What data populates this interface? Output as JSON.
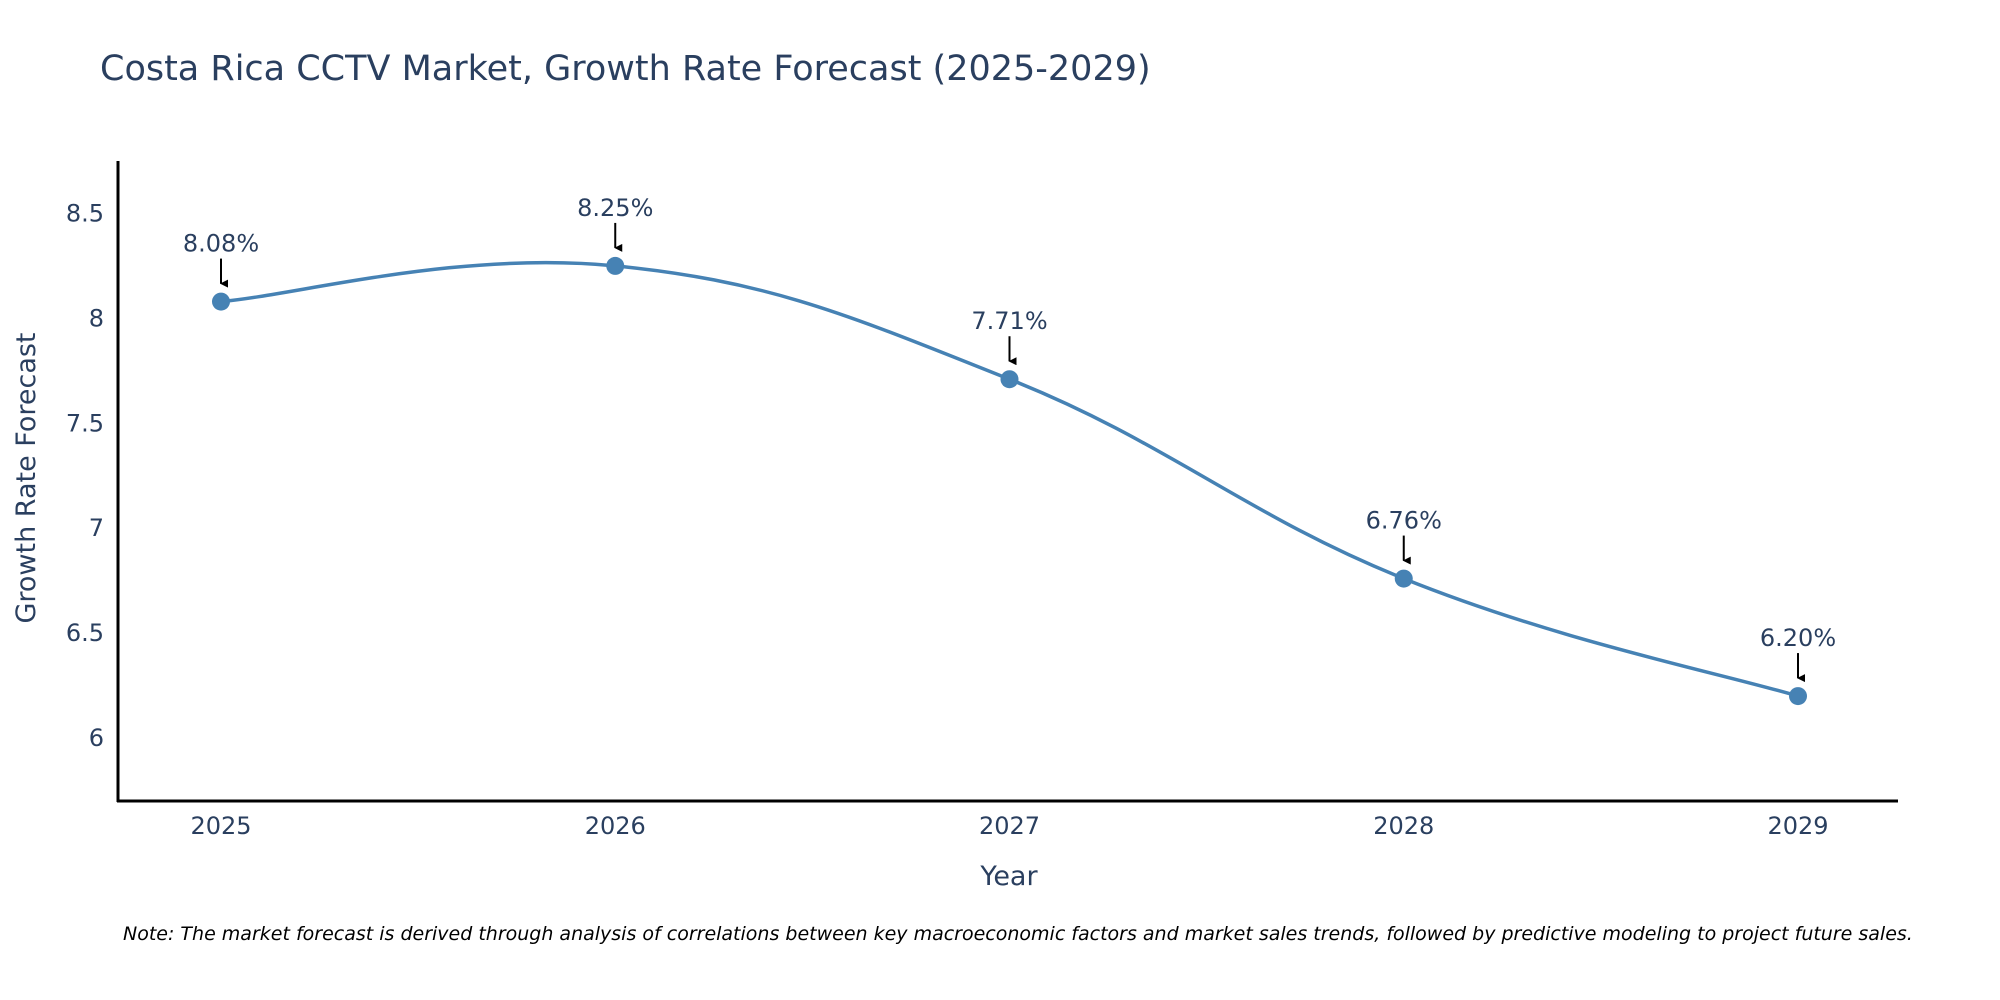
{
  "chart_data": {
    "type": "line",
    "title": "Costa Rica CCTV Market, Growth Rate Forecast (2025-2029)",
    "xlabel": "Year",
    "ylabel": "Growth Rate Forecast",
    "categories": [
      "2025",
      "2026",
      "2027",
      "2028",
      "2029"
    ],
    "values": [
      8.08,
      8.25,
      7.71,
      6.76,
      6.2
    ],
    "data_labels": [
      "8.08%",
      "8.25%",
      "7.71%",
      "6.76%",
      "6.20%"
    ],
    "yticks": [
      6,
      6.5,
      7,
      7.5,
      8,
      8.5
    ],
    "ytick_labels": [
      "6",
      "6.5",
      "7",
      "7.5",
      "8",
      "8.5"
    ],
    "ylim": [
      5.7,
      8.75
    ],
    "line_shape": "spline",
    "grid": false,
    "legend": "none",
    "annotations": "arrow pointing to each data point with percentage label",
    "note": "Note: The market forecast is derived through analysis of correlations between key macroeconomic factors and market sales trends, followed by predictive modeling to project future sales.",
    "colors": {
      "line": "#4682b4",
      "marker": "#4682b4",
      "text": "#2a3f5f",
      "axis": "#000000",
      "arrow": "#000000"
    }
  }
}
